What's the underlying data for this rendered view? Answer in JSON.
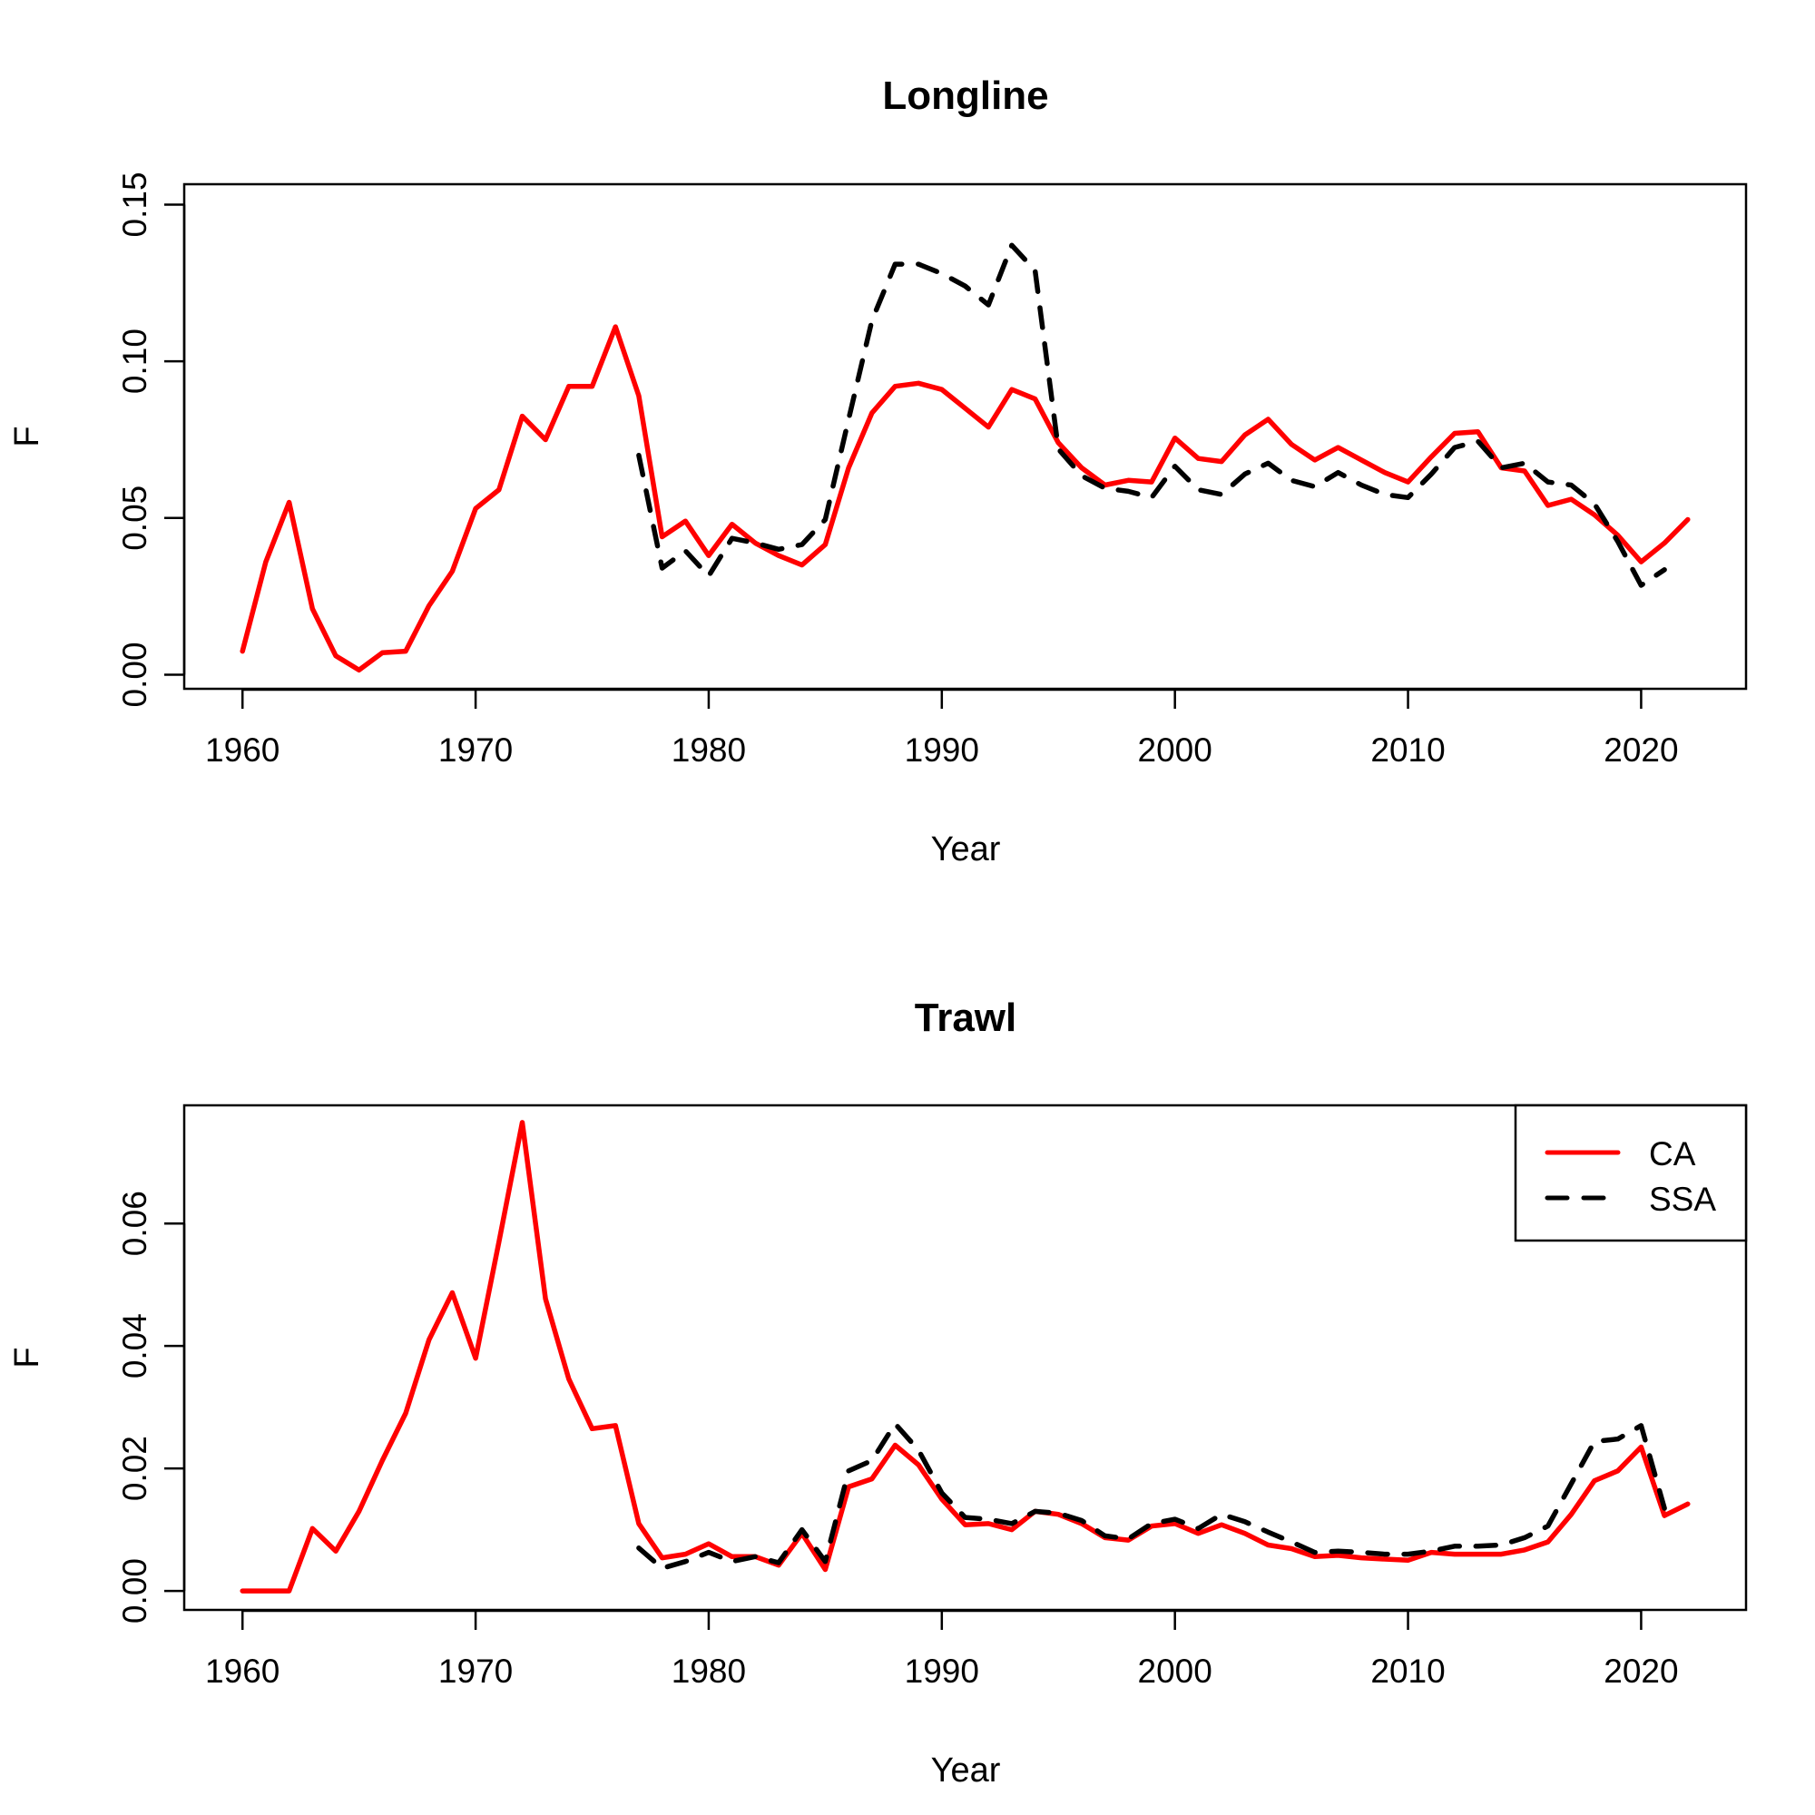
{
  "chart_data": [
    {
      "type": "line",
      "title": "Longline",
      "xlabel": "Year",
      "ylabel": "F",
      "xlim": [
        1957.5,
        2024.5
      ],
      "ylim": [
        -0.0045,
        0.1565
      ],
      "xticks": [
        1960,
        1970,
        1980,
        1990,
        2000,
        2010,
        2020
      ],
      "xtick_labels": [
        "1960",
        "1970",
        "1980",
        "1990",
        "2000",
        "2010",
        "2020"
      ],
      "yticks": [
        0.0,
        0.05,
        0.1,
        0.15
      ],
      "ytick_labels": [
        "0.00",
        "0.05",
        "0.10",
        "0.15"
      ],
      "grid": false,
      "legend": null,
      "series": [
        {
          "name": "CA",
          "color": "#ff0000",
          "style": "solid",
          "x": [
            1960,
            1961,
            1962,
            1963,
            1964,
            1965,
            1966,
            1967,
            1968,
            1969,
            1970,
            1971,
            1972,
            1973,
            1974,
            1975,
            1976,
            1977,
            1978,
            1979,
            1980,
            1981,
            1982,
            1983,
            1984,
            1985,
            1986,
            1987,
            1988,
            1989,
            1990,
            1991,
            1992,
            1993,
            1994,
            1995,
            1996,
            1997,
            1998,
            1999,
            2000,
            2001,
            2002,
            2003,
            2004,
            2005,
            2006,
            2007,
            2008,
            2009,
            2010,
            2011,
            2012,
            2013,
            2014,
            2015,
            2016,
            2017,
            2018,
            2019,
            2020,
            2021,
            2022
          ],
          "y": [
            0.0075,
            0.036,
            0.055,
            0.021,
            0.006,
            0.0015,
            0.007,
            0.0075,
            0.022,
            0.033,
            0.053,
            0.059,
            0.0825,
            0.075,
            0.092,
            0.092,
            0.111,
            0.089,
            0.044,
            0.049,
            0.038,
            0.048,
            0.042,
            0.038,
            0.035,
            0.0415,
            0.066,
            0.0835,
            0.092,
            0.093,
            0.091,
            0.085,
            0.079,
            0.091,
            0.088,
            0.074,
            0.066,
            0.0605,
            0.062,
            0.0615,
            0.0755,
            0.069,
            0.068,
            0.0765,
            0.0815,
            0.0735,
            0.0685,
            0.0725,
            0.0685,
            0.0645,
            0.0615,
            0.0695,
            0.077,
            0.0775,
            0.066,
            0.065,
            0.054,
            0.056,
            0.051,
            0.0445,
            0.036,
            0.042,
            0.0495
          ]
        },
        {
          "name": "SSA",
          "color": "#000000",
          "style": "dashed",
          "x": [
            1977,
            1978,
            1979,
            1980,
            1981,
            1982,
            1983,
            1984,
            1985,
            1986,
            1987,
            1988,
            1989,
            1990,
            1991,
            1992,
            1993,
            1994,
            1995,
            1996,
            1997,
            1998,
            1999,
            2000,
            2001,
            2002,
            2003,
            2004,
            2005,
            2006,
            2007,
            2008,
            2009,
            2010,
            2011,
            2012,
            2013,
            2014,
            2015,
            2016,
            2017,
            2018,
            2019,
            2020,
            2021
          ],
          "y": [
            0.07,
            0.034,
            0.0395,
            0.0315,
            0.0435,
            0.042,
            0.04,
            0.0415,
            0.0495,
            0.0815,
            0.113,
            0.131,
            0.131,
            0.128,
            0.124,
            0.118,
            0.137,
            0.129,
            0.072,
            0.0635,
            0.0595,
            0.0585,
            0.0565,
            0.0665,
            0.059,
            0.0575,
            0.064,
            0.0675,
            0.062,
            0.06,
            0.0645,
            0.0605,
            0.0575,
            0.0565,
            0.064,
            0.0725,
            0.0745,
            0.066,
            0.0675,
            0.0615,
            0.0605,
            0.0545,
            0.0425,
            0.0285,
            0.0335
          ]
        }
      ]
    },
    {
      "type": "line",
      "title": "Trawl",
      "xlabel": "Year",
      "ylabel": "F",
      "xlim": [
        1957.5,
        2024.5
      ],
      "ylim": [
        -0.0031,
        0.0793
      ],
      "xticks": [
        1960,
        1970,
        1980,
        1990,
        2000,
        2010,
        2020
      ],
      "xtick_labels": [
        "1960",
        "1970",
        "1980",
        "1990",
        "2000",
        "2010",
        "2020"
      ],
      "yticks": [
        0.0,
        0.02,
        0.04,
        0.06
      ],
      "ytick_labels": [
        "0.00",
        "0.02",
        "0.04",
        "0.06"
      ],
      "grid": false,
      "legend": "top-right",
      "series": [
        {
          "name": "CA",
          "color": "#ff0000",
          "style": "solid",
          "x": [
            1960,
            1961,
            1962,
            1963,
            1964,
            1965,
            1966,
            1967,
            1968,
            1969,
            1970,
            1971,
            1972,
            1973,
            1974,
            1975,
            1976,
            1977,
            1978,
            1979,
            1980,
            1981,
            1982,
            1983,
            1984,
            1985,
            1986,
            1987,
            1988,
            1989,
            1990,
            1991,
            1992,
            1993,
            1994,
            1995,
            1996,
            1997,
            1998,
            1999,
            2000,
            2001,
            2002,
            2003,
            2004,
            2005,
            2006,
            2007,
            2008,
            2009,
            2010,
            2011,
            2012,
            2013,
            2014,
            2015,
            2016,
            2017,
            2018,
            2019,
            2020,
            2021,
            2022
          ],
          "y": [
            0,
            0,
            0,
            0.0102,
            0.0065,
            0.013,
            0.0213,
            0.029,
            0.041,
            0.0487,
            0.038,
            0.057,
            0.0765,
            0.0477,
            0.0346,
            0.0265,
            0.027,
            0.011,
            0.0054,
            0.006,
            0.0077,
            0.0056,
            0.0056,
            0.0042,
            0.0094,
            0.0035,
            0.017,
            0.0183,
            0.0238,
            0.0206,
            0.015,
            0.0108,
            0.011,
            0.01,
            0.013,
            0.0125,
            0.011,
            0.0087,
            0.0083,
            0.0106,
            0.011,
            0.0094,
            0.0108,
            0.0094,
            0.0075,
            0.0069,
            0.0056,
            0.0058,
            0.0054,
            0.0052,
            0.005,
            0.0063,
            0.006,
            0.006,
            0.006,
            0.0067,
            0.008,
            0.0125,
            0.018,
            0.0196,
            0.0235,
            0.0123,
            0.0142
          ]
        },
        {
          "name": "SSA",
          "color": "#000000",
          "style": "dashed",
          "x": [
            1977,
            1978,
            1979,
            1980,
            1981,
            1982,
            1983,
            1984,
            1985,
            1986,
            1987,
            1988,
            1989,
            1990,
            1991,
            1992,
            1993,
            1994,
            1995,
            1996,
            1997,
            1998,
            1999,
            2000,
            2001,
            2002,
            2003,
            2004,
            2005,
            2006,
            2007,
            2008,
            2009,
            2010,
            2011,
            2012,
            2013,
            2014,
            2015,
            2016,
            2017,
            2018,
            2019,
            2020,
            2021
          ],
          "y": [
            0.007,
            0.0037,
            0.0048,
            0.0063,
            0.0048,
            0.0056,
            0.0046,
            0.01,
            0.0048,
            0.0196,
            0.0213,
            0.0273,
            0.023,
            0.016,
            0.012,
            0.0117,
            0.011,
            0.013,
            0.0127,
            0.0115,
            0.009,
            0.0085,
            0.011,
            0.0117,
            0.0102,
            0.0125,
            0.0113,
            0.0096,
            0.008,
            0.0063,
            0.0065,
            0.0063,
            0.006,
            0.006,
            0.0065,
            0.0073,
            0.0073,
            0.0075,
            0.0087,
            0.0106,
            0.0175,
            0.0244,
            0.0248,
            0.027,
            0.0135
          ]
        }
      ]
    }
  ],
  "legend": {
    "entries": [
      {
        "label": "CA",
        "color": "#ff0000",
        "style": "solid"
      },
      {
        "label": "SSA",
        "color": "#000000",
        "style": "dashed"
      }
    ]
  }
}
